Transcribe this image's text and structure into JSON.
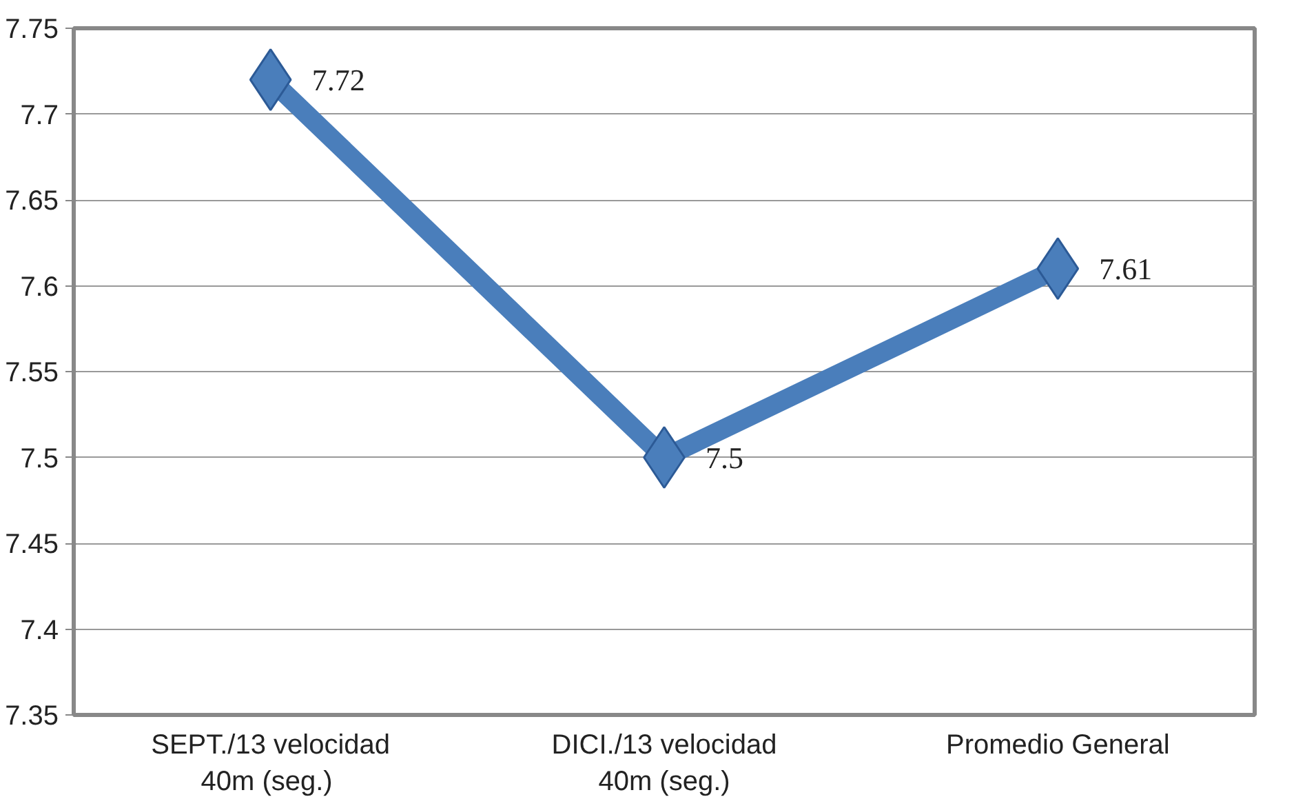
{
  "chart_data": {
    "type": "line",
    "categories": [
      "SEPT./13 velocidad 40m  (seg.)",
      "DICI./13 velocidad 40m (seg.)",
      "Promedio General"
    ],
    "series": [
      {
        "color": "#4a7ebb",
        "values": [
          7.72,
          7.5,
          7.61
        ]
      }
    ],
    "ylim": [
      7.35,
      7.75
    ],
    "yticks": [
      7.35,
      7.4,
      7.45,
      7.5,
      7.55,
      7.6,
      7.65,
      7.7,
      7.75
    ],
    "grid": "y",
    "marker": "diamond",
    "line_style": "solid",
    "data_labels": true
  }
}
